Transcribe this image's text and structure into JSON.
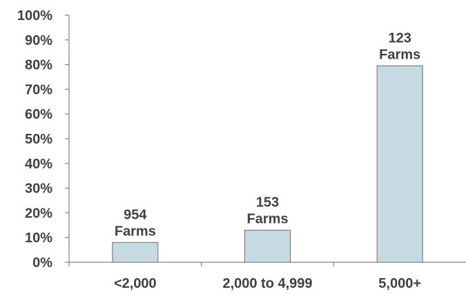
{
  "chart_data": {
    "type": "bar",
    "categories": [
      "<2,000",
      "2,000 to 4,999",
      "5,000+"
    ],
    "values": [
      8,
      13,
      79.5
    ],
    "data_labels": [
      [
        "954",
        "Farms"
      ],
      [
        "153",
        "Farms"
      ],
      [
        "123",
        "Farms"
      ]
    ],
    "ylim": [
      0,
      100
    ],
    "y_ticks": [
      "0%",
      "10%",
      "20%",
      "30%",
      "40%",
      "50%",
      "60%",
      "70%",
      "80%",
      "90%",
      "100%"
    ],
    "grid": false,
    "legend": "none",
    "bar_color": "#c5dae3",
    "bar_edge_color": "#6b6b6b"
  }
}
